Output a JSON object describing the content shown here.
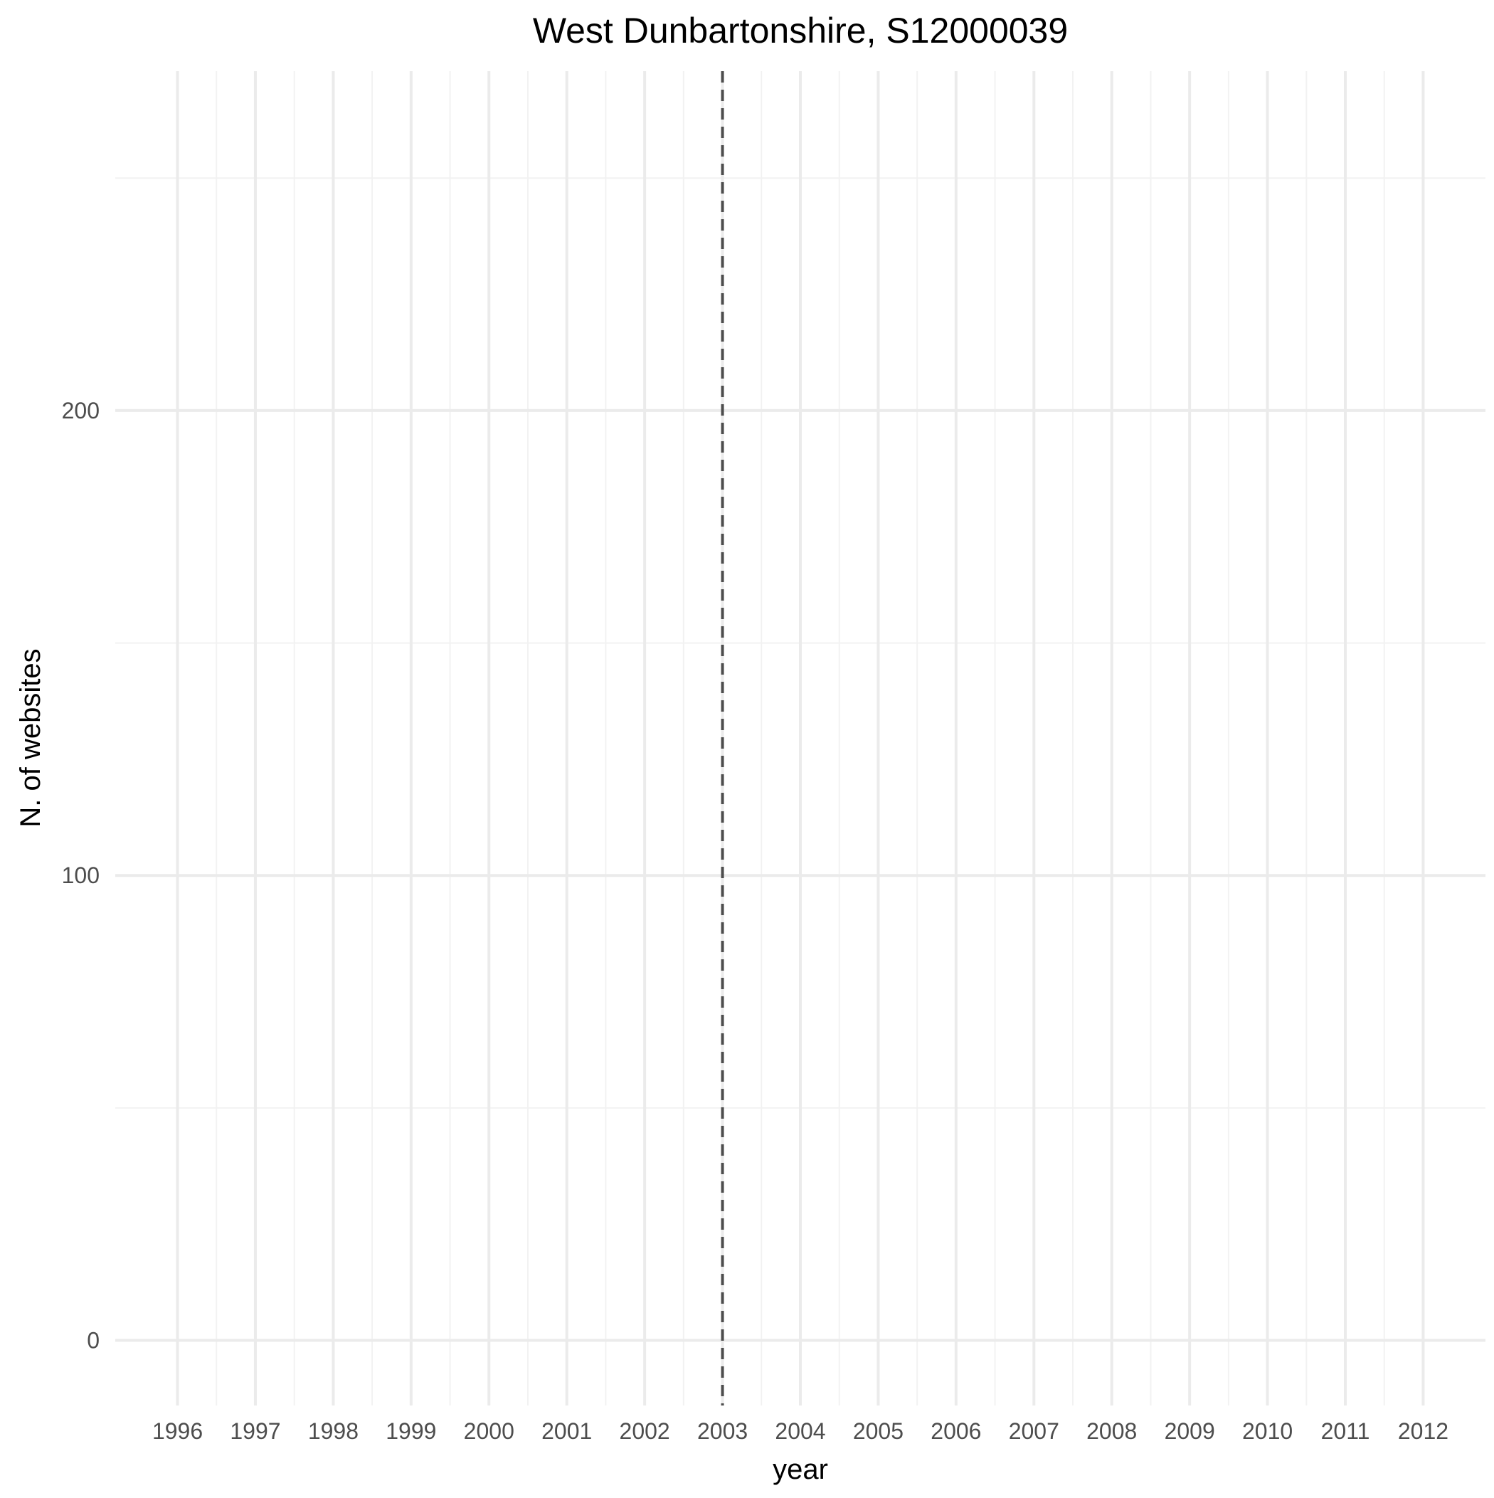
{
  "chart_data": {
    "type": "line",
    "title": "West Dunbartonshire, S12000039",
    "xlabel": "year",
    "ylabel": "N. of websites",
    "x_ticks": [
      "1996",
      "1997",
      "1998",
      "1999",
      "2000",
      "2001",
      "2002",
      "2003",
      "2004",
      "2005",
      "2006",
      "2007",
      "2008",
      "2009",
      "2010",
      "2011",
      "2012"
    ],
    "y_ticks": [
      "0",
      "100",
      "200"
    ],
    "xlim": [
      1995.2,
      2012.8
    ],
    "ylim": [
      -14,
      273
    ],
    "grid": true,
    "series": [],
    "reference_lines": [
      {
        "axis": "x",
        "value": 2003,
        "style": "dashed",
        "color": "#4d4d4d"
      }
    ]
  }
}
